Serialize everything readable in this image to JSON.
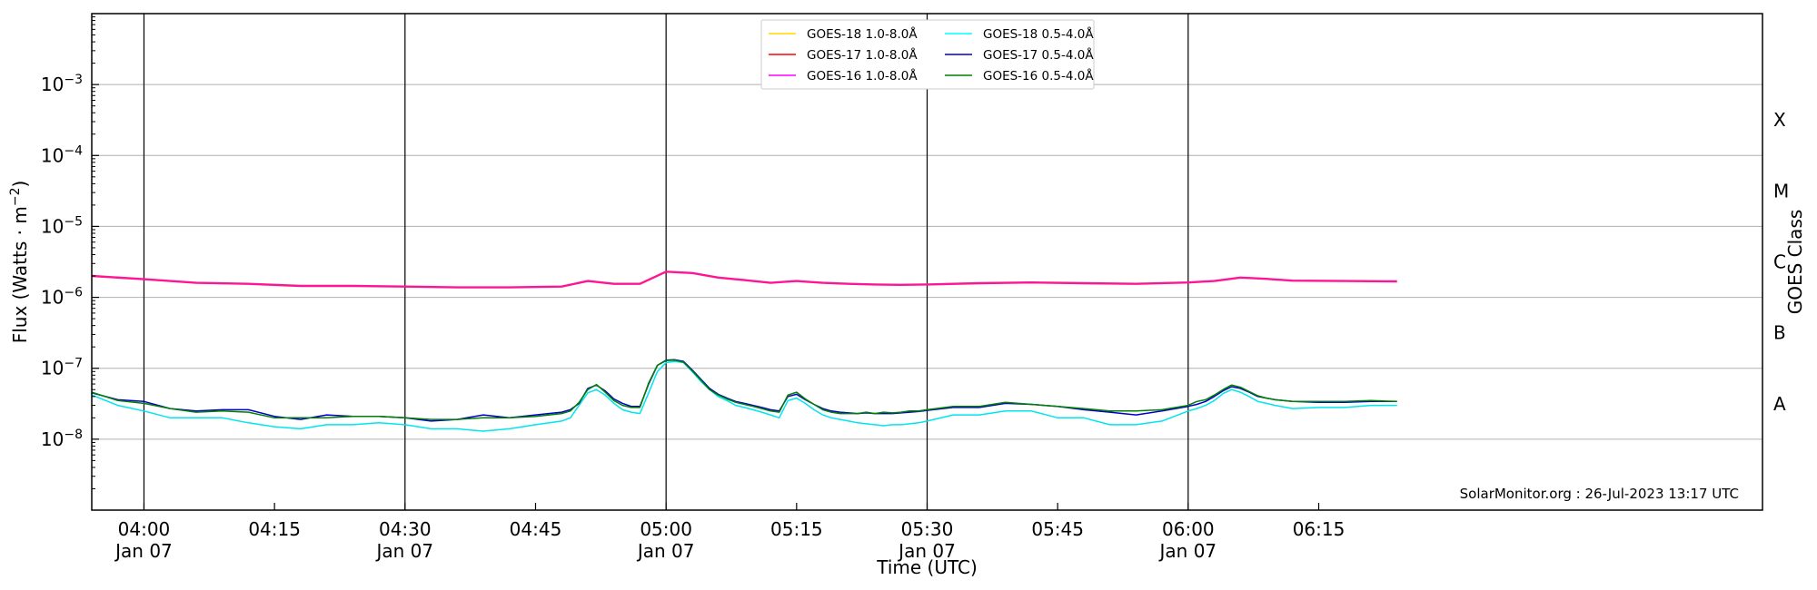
{
  "chart_data": {
    "type": "line",
    "xlabel": "Time (UTC)",
    "ylabel": "Flux (Watts · m",
    "ylabel_sup": "−2",
    "ylabel_close": ")",
    "right_label": "GOES Class",
    "y_scale": "log",
    "ylim": [
      1e-09,
      0.01
    ],
    "xlim_minutes": [
      -6,
      186
    ],
    "x_start_time": "03:54",
    "x_ticks": [
      {
        "t": 0,
        "time": "04:00",
        "date": "Jan 07"
      },
      {
        "t": 15,
        "time": "04:15",
        "date": ""
      },
      {
        "t": 30,
        "time": "04:30",
        "date": "Jan 07"
      },
      {
        "t": 45,
        "time": "04:45",
        "date": ""
      },
      {
        "t": 60,
        "time": "05:00",
        "date": "Jan 07"
      },
      {
        "t": 75,
        "time": "05:15",
        "date": ""
      },
      {
        "t": 90,
        "time": "05:30",
        "date": "Jan 07"
      },
      {
        "t": 105,
        "time": "05:45",
        "date": ""
      },
      {
        "t": 120,
        "time": "06:00",
        "date": "Jan 07"
      },
      {
        "t": 135,
        "time": "06:15",
        "date": ""
      }
    ],
    "vertical_lines_at": [
      0,
      30,
      60,
      90,
      120
    ],
    "y_ticks": [
      {
        "exp": -8,
        "label_base": "10",
        "label_exp": "−8"
      },
      {
        "exp": -7,
        "label_base": "10",
        "label_exp": "−7"
      },
      {
        "exp": -6,
        "label_base": "10",
        "label_exp": "−6"
      },
      {
        "exp": -5,
        "label_base": "10",
        "label_exp": "−5"
      },
      {
        "exp": -4,
        "label_base": "10",
        "label_exp": "−4"
      },
      {
        "exp": -3,
        "label_base": "10",
        "label_exp": "−3"
      }
    ],
    "goes_classes": [
      {
        "label": "A",
        "exp": -7.5
      },
      {
        "label": "B",
        "exp": -6.5
      },
      {
        "label": "C",
        "exp": -5.5
      },
      {
        "label": "M",
        "exp": -4.5
      },
      {
        "label": "X",
        "exp": -3.5
      }
    ],
    "grid": true,
    "legend_position": "top-center",
    "legend": [
      {
        "name": "GOES-18 1.0-8.0Å",
        "color": "#ffd700"
      },
      {
        "name": "GOES-18 0.5-4.0Å",
        "color": "#00ffff"
      },
      {
        "name": "GOES-17 1.0-8.0Å",
        "color": "#ff0000"
      },
      {
        "name": "GOES-17 0.5-4.0Å",
        "color": "#0000cc"
      },
      {
        "name": "GOES-16 1.0-8.0Å",
        "color": "#ff00ff"
      },
      {
        "name": "GOES-16 0.5-4.0Å",
        "color": "#008000"
      }
    ],
    "credit": "SolarMonitor.org : 26-Jul-2023 13:17 UTC",
    "series": [
      {
        "name": "GOES-16 1.0-8.0Å",
        "color": "#ff1493",
        "t": [
          -6,
          0,
          6,
          12,
          18,
          24,
          30,
          36,
          42,
          48,
          51,
          54,
          57,
          60,
          63,
          66,
          69,
          72,
          75,
          78,
          81,
          84,
          87,
          90,
          96,
          102,
          108,
          114,
          120,
          123,
          126,
          129,
          132,
          138,
          144
        ],
        "values": [
          2e-06,
          1.8e-06,
          1.6e-06,
          1.55e-06,
          1.45e-06,
          1.45e-06,
          1.42e-06,
          1.38e-06,
          1.38e-06,
          1.42e-06,
          1.7e-06,
          1.55e-06,
          1.55e-06,
          2.3e-06,
          2.2e-06,
          1.9e-06,
          1.75e-06,
          1.6e-06,
          1.7e-06,
          1.6e-06,
          1.55e-06,
          1.52e-06,
          1.5e-06,
          1.52e-06,
          1.58e-06,
          1.62e-06,
          1.58e-06,
          1.55e-06,
          1.62e-06,
          1.7e-06,
          1.9e-06,
          1.82e-06,
          1.72e-06,
          1.7e-06,
          1.68e-06
        ]
      },
      {
        "name": "GOES-18 0.5-4.0Å",
        "color": "#00e5ee",
        "t": [
          -6,
          -3,
          0,
          3,
          6,
          9,
          12,
          15,
          18,
          21,
          24,
          27,
          30,
          33,
          36,
          39,
          42,
          45,
          48,
          49,
          50,
          51,
          52,
          53,
          54,
          55,
          56,
          57,
          58,
          59,
          60,
          61,
          62,
          63,
          64,
          65,
          66,
          67,
          68,
          69,
          70,
          71,
          72,
          73,
          74,
          75,
          76,
          77,
          78,
          79,
          80,
          81,
          82,
          83,
          84,
          85,
          86,
          87,
          88,
          89,
          90,
          93,
          96,
          99,
          102,
          105,
          108,
          111,
          114,
          117,
          120,
          121,
          122,
          123,
          124,
          125,
          126,
          127,
          128,
          129,
          130,
          132,
          135,
          138,
          141,
          144
        ],
        "values": [
          4.2e-08,
          3e-08,
          2.5e-08,
          2e-08,
          2e-08,
          2e-08,
          1.7e-08,
          1.5e-08,
          1.4e-08,
          1.6e-08,
          1.6e-08,
          1.7e-08,
          1.6e-08,
          1.4e-08,
          1.4e-08,
          1.3e-08,
          1.4e-08,
          1.6e-08,
          1.8e-08,
          2e-08,
          3e-08,
          4.5e-08,
          5e-08,
          4.2e-08,
          3.2e-08,
          2.6e-08,
          2.4e-08,
          2.3e-08,
          4.5e-08,
          9e-08,
          1.2e-07,
          1.25e-07,
          1.2e-07,
          9e-08,
          6.5e-08,
          5e-08,
          4e-08,
          3.5e-08,
          3e-08,
          2.8e-08,
          2.6e-08,
          2.4e-08,
          2.2e-08,
          2e-08,
          3.5e-08,
          3.8e-08,
          3.2e-08,
          2.6e-08,
          2.2e-08,
          2e-08,
          1.9e-08,
          1.8e-08,
          1.7e-08,
          1.65e-08,
          1.6e-08,
          1.55e-08,
          1.6e-08,
          1.6e-08,
          1.65e-08,
          1.7e-08,
          1.8e-08,
          2.2e-08,
          2.2e-08,
          2.5e-08,
          2.5e-08,
          2e-08,
          2e-08,
          1.6e-08,
          1.6e-08,
          1.8e-08,
          2.5e-08,
          2.7e-08,
          3e-08,
          3.5e-08,
          4.4e-08,
          5e-08,
          4.6e-08,
          4e-08,
          3.4e-08,
          3.2e-08,
          3e-08,
          2.7e-08,
          2.8e-08,
          2.8e-08,
          3e-08,
          3e-08
        ]
      },
      {
        "name": "GOES-17 0.5-4.0Å",
        "color": "#0000cc",
        "t": [
          -6,
          -3,
          0,
          3,
          6,
          9,
          12,
          15,
          18,
          21,
          24,
          27,
          30,
          33,
          36,
          39,
          42,
          45,
          48,
          49,
          50,
          51,
          52,
          53,
          54,
          55,
          56,
          57,
          58,
          59,
          60,
          61,
          62,
          63,
          64,
          65,
          66,
          67,
          68,
          69,
          70,
          71,
          72,
          73,
          74,
          75,
          76,
          77,
          78,
          79,
          80,
          81,
          82,
          83,
          84,
          85,
          86,
          87,
          88,
          89,
          90,
          93,
          96,
          99,
          102,
          105,
          108,
          111,
          114,
          117,
          120,
          121,
          122,
          123,
          124,
          125,
          126,
          127,
          128,
          129,
          130,
          132,
          135,
          138,
          141,
          144
        ],
        "values": [
          4.5e-08,
          3.6e-08,
          3.4e-08,
          2.7e-08,
          2.5e-08,
          2.6e-08,
          2.6e-08,
          2.1e-08,
          1.9e-08,
          2.2e-08,
          2.1e-08,
          2.1e-08,
          2e-08,
          1.8e-08,
          1.9e-08,
          2.2e-08,
          2e-08,
          2.2e-08,
          2.4e-08,
          2.6e-08,
          3.2e-08,
          5.2e-08,
          5.8e-08,
          4.8e-08,
          3.7e-08,
          3.2e-08,
          2.9e-08,
          2.9e-08,
          6e-08,
          1.1e-07,
          1.3e-07,
          1.32e-07,
          1.25e-07,
          9.5e-08,
          7e-08,
          5.2e-08,
          4.3e-08,
          3.8e-08,
          3.4e-08,
          3.2e-08,
          3e-08,
          2.8e-08,
          2.6e-08,
          2.5e-08,
          4e-08,
          4.3e-08,
          3.6e-08,
          3.1e-08,
          2.7e-08,
          2.5e-08,
          2.4e-08,
          2.35e-08,
          2.3e-08,
          2.35e-08,
          2.3e-08,
          2.3e-08,
          2.3e-08,
          2.35e-08,
          2.4e-08,
          2.45e-08,
          2.55e-08,
          2.8e-08,
          2.8e-08,
          3.2e-08,
          3.1e-08,
          2.9e-08,
          2.6e-08,
          2.4e-08,
          2.2e-08,
          2.5e-08,
          2.9e-08,
          3.1e-08,
          3.4e-08,
          4e-08,
          4.8e-08,
          5.5e-08,
          5.2e-08,
          4.6e-08,
          4e-08,
          3.8e-08,
          3.6e-08,
          3.4e-08,
          3.3e-08,
          3.3e-08,
          3.4e-08,
          3.4e-08
        ]
      },
      {
        "name": "GOES-16 0.5-4.0Å",
        "color": "#008000",
        "t": [
          -6,
          -3,
          0,
          3,
          6,
          9,
          12,
          15,
          18,
          21,
          24,
          27,
          30,
          33,
          36,
          39,
          42,
          45,
          48,
          49,
          50,
          51,
          52,
          53,
          54,
          55,
          56,
          57,
          58,
          59,
          60,
          61,
          62,
          63,
          64,
          65,
          66,
          67,
          68,
          69,
          70,
          71,
          72,
          73,
          74,
          75,
          76,
          77,
          78,
          79,
          80,
          81,
          82,
          83,
          84,
          85,
          86,
          87,
          88,
          89,
          90,
          93,
          96,
          99,
          102,
          105,
          108,
          111,
          114,
          117,
          120,
          121,
          122,
          123,
          124,
          125,
          126,
          127,
          128,
          129,
          130,
          132,
          135,
          138,
          141,
          144
        ],
        "values": [
          4.6e-08,
          3.5e-08,
          3.2e-08,
          2.7e-08,
          2.4e-08,
          2.5e-08,
          2.4e-08,
          2e-08,
          2e-08,
          2e-08,
          2.1e-08,
          2.1e-08,
          2e-08,
          1.9e-08,
          1.9e-08,
          2e-08,
          2e-08,
          2.1e-08,
          2.3e-08,
          2.5e-08,
          3.3e-08,
          5e-08,
          5.9e-08,
          4.6e-08,
          3.5e-08,
          3e-08,
          2.8e-08,
          2.8e-08,
          6.2e-08,
          1.1e-07,
          1.28e-07,
          1.3e-07,
          1.22e-07,
          9.2e-08,
          6.8e-08,
          5e-08,
          4.2e-08,
          3.7e-08,
          3.3e-08,
          3.1e-08,
          2.9e-08,
          2.7e-08,
          2.5e-08,
          2.4e-08,
          4.2e-08,
          4.6e-08,
          3.7e-08,
          3.1e-08,
          2.6e-08,
          2.4e-08,
          2.3e-08,
          2.3e-08,
          2.3e-08,
          2.4e-08,
          2.3e-08,
          2.4e-08,
          2.35e-08,
          2.4e-08,
          2.5e-08,
          2.5e-08,
          2.6e-08,
          2.9e-08,
          2.9e-08,
          3.3e-08,
          3.1e-08,
          2.9e-08,
          2.7e-08,
          2.5e-08,
          2.5e-08,
          2.6e-08,
          3e-08,
          3.4e-08,
          3.6e-08,
          4.2e-08,
          5e-08,
          5.8e-08,
          5.4e-08,
          4.7e-08,
          4.1e-08,
          3.8e-08,
          3.6e-08,
          3.4e-08,
          3.4e-08,
          3.4e-08,
          3.5e-08,
          3.4e-08
        ]
      }
    ]
  }
}
